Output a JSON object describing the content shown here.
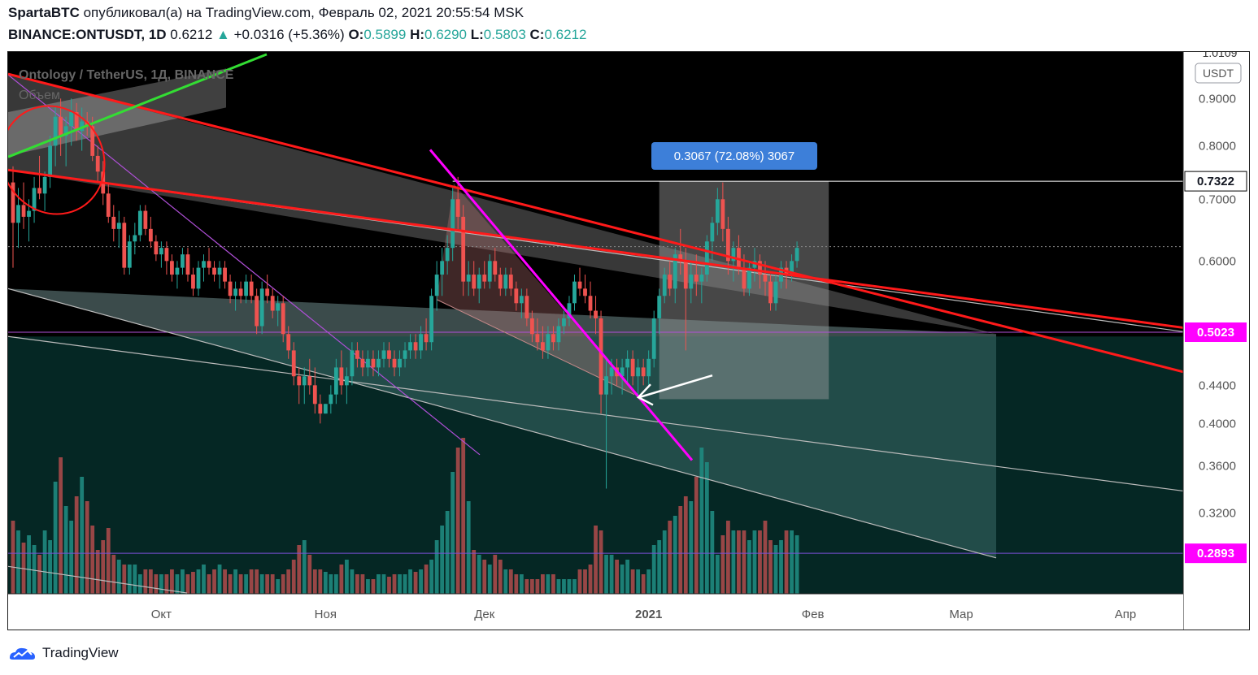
{
  "header": {
    "author": "SpartaBTC",
    "published_text": "опубликовал(а) на TradingView.com, Февраль 02, 2021 20:55:54 MSK",
    "symbol": "BINANCE:ONTUSDT, 1D",
    "last": "0.6212",
    "change": "+0.0316 (+5.36%)",
    "o_label": "O:",
    "o": "0.5899",
    "h_label": "H:",
    "h": "0.6290",
    "l_label": "L:",
    "l": "0.5803",
    "c_label": "C:",
    "c": "0.6212",
    "up_arrow": "▲"
  },
  "overlay": {
    "pair_title": "Ontology / TetherUS, 1Д, BINANCE",
    "volume_label": "Объем",
    "currency": "USDT",
    "top_cut_label": "1.0109",
    "measure_label": "0.3067 (72.08%) 3067"
  },
  "price_marks": [
    {
      "label": "0.7322",
      "value": 0.7322,
      "style": "white"
    },
    {
      "label": "0.5023",
      "value": 0.5023,
      "style": "magenta"
    },
    {
      "label": "0.2893",
      "value": 0.2893,
      "style": "magenta"
    }
  ],
  "footer": {
    "brand": "TradingView"
  },
  "colors": {
    "up": "#26a69a",
    "down": "#ef5350",
    "magenta": "#ff00ff",
    "red_line": "#ff1a1a",
    "green_line": "#33dd33",
    "measure": "#3d7fd9"
  },
  "chart_data": {
    "type": "candlestick",
    "title": "Ontology / TetherUS, 1Д, BINANCE",
    "ylabel": "USDT",
    "y_scale": "log",
    "ylim": [
      0.2615,
      1.0109
    ],
    "yticks": [
      0.9,
      0.8,
      0.7,
      0.6,
      0.44,
      0.4,
      0.36,
      0.32
    ],
    "ytick_labels": [
      "0.9000",
      "0.8000",
      "0.7000",
      "0.6000",
      "0.4400",
      "0.4000",
      "0.3600",
      "0.3200"
    ],
    "x_tick_labels": [
      "Окт",
      "Ноя",
      "Дек",
      "2021",
      "Фев",
      "Мар",
      "Апр"
    ],
    "x_ticks_day": [
      28,
      59,
      89,
      120,
      151,
      179,
      210
    ],
    "xlim_day": [
      0,
      224
    ],
    "date_origin": "2020-09-03",
    "candles_day0": 0,
    "measure": {
      "from_day": 122,
      "to_day": 154,
      "low": 0.425,
      "high": 0.7322
    },
    "candles": [
      [
        0.73,
        0.76,
        0.59,
        0.66
      ],
      [
        0.66,
        0.72,
        0.62,
        0.69
      ],
      [
        0.69,
        0.73,
        0.65,
        0.67
      ],
      [
        0.67,
        0.7,
        0.63,
        0.68
      ],
      [
        0.68,
        0.74,
        0.66,
        0.72
      ],
      [
        0.72,
        0.78,
        0.7,
        0.71
      ],
      [
        0.71,
        0.75,
        0.68,
        0.74
      ],
      [
        0.74,
        0.82,
        0.72,
        0.8
      ],
      [
        0.8,
        0.88,
        0.76,
        0.86
      ],
      [
        0.86,
        0.9,
        0.78,
        0.82
      ],
      [
        0.82,
        0.86,
        0.76,
        0.84
      ],
      [
        0.84,
        0.9,
        0.8,
        0.87
      ],
      [
        0.87,
        0.89,
        0.81,
        0.83
      ],
      [
        0.83,
        0.88,
        0.79,
        0.85
      ],
      [
        0.85,
        0.87,
        0.82,
        0.84
      ],
      [
        0.84,
        0.86,
        0.77,
        0.78
      ],
      [
        0.78,
        0.8,
        0.73,
        0.75
      ],
      [
        0.75,
        0.77,
        0.69,
        0.71
      ],
      [
        0.71,
        0.73,
        0.66,
        0.67
      ],
      [
        0.67,
        0.69,
        0.63,
        0.65
      ],
      [
        0.65,
        0.68,
        0.62,
        0.66
      ],
      [
        0.66,
        0.67,
        0.58,
        0.59
      ],
      [
        0.59,
        0.64,
        0.58,
        0.63
      ],
      [
        0.63,
        0.66,
        0.61,
        0.64
      ],
      [
        0.64,
        0.69,
        0.63,
        0.68
      ],
      [
        0.68,
        0.69,
        0.64,
        0.65
      ],
      [
        0.65,
        0.67,
        0.62,
        0.63
      ],
      [
        0.63,
        0.64,
        0.6,
        0.61
      ],
      [
        0.61,
        0.63,
        0.59,
        0.62
      ],
      [
        0.62,
        0.63,
        0.58,
        0.6
      ],
      [
        0.6,
        0.61,
        0.57,
        0.58
      ],
      [
        0.58,
        0.6,
        0.56,
        0.59
      ],
      [
        0.59,
        0.62,
        0.58,
        0.61
      ],
      [
        0.61,
        0.62,
        0.57,
        0.58
      ],
      [
        0.58,
        0.59,
        0.55,
        0.56
      ],
      [
        0.56,
        0.6,
        0.55,
        0.59
      ],
      [
        0.59,
        0.61,
        0.57,
        0.6
      ],
      [
        0.6,
        0.62,
        0.58,
        0.59
      ],
      [
        0.59,
        0.6,
        0.57,
        0.58
      ],
      [
        0.58,
        0.6,
        0.56,
        0.59
      ],
      [
        0.59,
        0.6,
        0.56,
        0.57
      ],
      [
        0.57,
        0.58,
        0.54,
        0.55
      ],
      [
        0.55,
        0.57,
        0.53,
        0.56
      ],
      [
        0.56,
        0.57,
        0.54,
        0.55
      ],
      [
        0.55,
        0.58,
        0.54,
        0.57
      ],
      [
        0.57,
        0.58,
        0.54,
        0.55
      ],
      [
        0.55,
        0.56,
        0.5,
        0.51
      ],
      [
        0.51,
        0.57,
        0.5,
        0.56
      ],
      [
        0.56,
        0.58,
        0.54,
        0.55
      ],
      [
        0.55,
        0.56,
        0.52,
        0.53
      ],
      [
        0.53,
        0.55,
        0.51,
        0.54
      ],
      [
        0.54,
        0.55,
        0.49,
        0.5
      ],
      [
        0.5,
        0.51,
        0.47,
        0.48
      ],
      [
        0.48,
        0.49,
        0.44,
        0.45
      ],
      [
        0.45,
        0.46,
        0.42,
        0.44
      ],
      [
        0.44,
        0.46,
        0.42,
        0.45
      ],
      [
        0.45,
        0.47,
        0.43,
        0.44
      ],
      [
        0.44,
        0.46,
        0.41,
        0.42
      ],
      [
        0.42,
        0.43,
        0.4,
        0.41
      ],
      [
        0.41,
        0.42,
        0.41,
        0.42
      ],
      [
        0.42,
        0.44,
        0.41,
        0.43
      ],
      [
        0.43,
        0.47,
        0.42,
        0.46
      ],
      [
        0.46,
        0.48,
        0.43,
        0.44
      ],
      [
        0.44,
        0.46,
        0.42,
        0.45
      ],
      [
        0.45,
        0.49,
        0.44,
        0.48
      ],
      [
        0.48,
        0.49,
        0.46,
        0.47
      ],
      [
        0.47,
        0.48,
        0.45,
        0.46
      ],
      [
        0.46,
        0.48,
        0.45,
        0.47
      ],
      [
        0.47,
        0.48,
        0.45,
        0.46
      ],
      [
        0.46,
        0.48,
        0.45,
        0.47
      ],
      [
        0.47,
        0.49,
        0.46,
        0.48
      ],
      [
        0.48,
        0.49,
        0.46,
        0.47
      ],
      [
        0.47,
        0.48,
        0.45,
        0.46
      ],
      [
        0.46,
        0.48,
        0.45,
        0.47
      ],
      [
        0.47,
        0.49,
        0.46,
        0.48
      ],
      [
        0.48,
        0.5,
        0.47,
        0.49
      ],
      [
        0.49,
        0.5,
        0.47,
        0.48
      ],
      [
        0.48,
        0.51,
        0.47,
        0.5
      ],
      [
        0.5,
        0.52,
        0.48,
        0.49
      ],
      [
        0.49,
        0.56,
        0.48,
        0.55
      ],
      [
        0.55,
        0.6,
        0.53,
        0.58
      ],
      [
        0.58,
        0.62,
        0.55,
        0.6
      ],
      [
        0.6,
        0.64,
        0.58,
        0.62
      ],
      [
        0.62,
        0.72,
        0.6,
        0.7
      ],
      [
        0.7,
        0.74,
        0.65,
        0.67
      ],
      [
        0.67,
        0.69,
        0.55,
        0.57
      ],
      [
        0.57,
        0.6,
        0.55,
        0.58
      ],
      [
        0.58,
        0.6,
        0.55,
        0.56
      ],
      [
        0.56,
        0.59,
        0.54,
        0.58
      ],
      [
        0.58,
        0.6,
        0.56,
        0.57
      ],
      [
        0.57,
        0.61,
        0.56,
        0.6
      ],
      [
        0.6,
        0.62,
        0.57,
        0.58
      ],
      [
        0.58,
        0.59,
        0.55,
        0.56
      ],
      [
        0.56,
        0.59,
        0.55,
        0.58
      ],
      [
        0.58,
        0.59,
        0.55,
        0.56
      ],
      [
        0.56,
        0.57,
        0.53,
        0.54
      ],
      [
        0.54,
        0.56,
        0.52,
        0.55
      ],
      [
        0.55,
        0.56,
        0.51,
        0.52
      ],
      [
        0.52,
        0.53,
        0.49,
        0.5
      ],
      [
        0.5,
        0.52,
        0.48,
        0.49
      ],
      [
        0.49,
        0.51,
        0.47,
        0.48
      ],
      [
        0.48,
        0.51,
        0.47,
        0.5
      ],
      [
        0.5,
        0.51,
        0.48,
        0.49
      ],
      [
        0.49,
        0.52,
        0.48,
        0.51
      ],
      [
        0.51,
        0.53,
        0.5,
        0.52
      ],
      [
        0.52,
        0.55,
        0.51,
        0.54
      ],
      [
        0.54,
        0.58,
        0.53,
        0.57
      ],
      [
        0.57,
        0.59,
        0.55,
        0.56
      ],
      [
        0.56,
        0.58,
        0.54,
        0.55
      ],
      [
        0.55,
        0.57,
        0.52,
        0.53
      ],
      [
        0.53,
        0.55,
        0.5,
        0.52
      ],
      [
        0.52,
        0.53,
        0.41,
        0.43
      ],
      [
        0.43,
        0.47,
        0.34,
        0.45
      ],
      [
        0.45,
        0.47,
        0.43,
        0.46
      ],
      [
        0.46,
        0.47,
        0.44,
        0.45
      ],
      [
        0.45,
        0.47,
        0.43,
        0.46
      ],
      [
        0.46,
        0.48,
        0.44,
        0.47
      ],
      [
        0.47,
        0.48,
        0.44,
        0.45
      ],
      [
        0.45,
        0.47,
        0.43,
        0.46
      ],
      [
        0.46,
        0.47,
        0.44,
        0.45
      ],
      [
        0.45,
        0.48,
        0.44,
        0.47
      ],
      [
        0.47,
        0.53,
        0.46,
        0.52
      ],
      [
        0.52,
        0.56,
        0.5,
        0.55
      ],
      [
        0.55,
        0.59,
        0.54,
        0.58
      ],
      [
        0.58,
        0.6,
        0.55,
        0.56
      ],
      [
        0.56,
        0.62,
        0.54,
        0.61
      ],
      [
        0.61,
        0.65,
        0.58,
        0.6
      ],
      [
        0.6,
        0.62,
        0.48,
        0.56
      ],
      [
        0.56,
        0.6,
        0.54,
        0.58
      ],
      [
        0.58,
        0.61,
        0.55,
        0.57
      ],
      [
        0.57,
        0.59,
        0.54,
        0.58
      ],
      [
        0.58,
        0.64,
        0.57,
        0.63
      ],
      [
        0.63,
        0.67,
        0.6,
        0.66
      ],
      [
        0.66,
        0.72,
        0.64,
        0.7
      ],
      [
        0.7,
        0.73,
        0.63,
        0.65
      ],
      [
        0.65,
        0.67,
        0.58,
        0.6
      ],
      [
        0.6,
        0.63,
        0.57,
        0.62
      ],
      [
        0.62,
        0.64,
        0.58,
        0.59
      ],
      [
        0.59,
        0.61,
        0.55,
        0.56
      ],
      [
        0.56,
        0.6,
        0.55,
        0.59
      ],
      [
        0.59,
        0.62,
        0.57,
        0.6
      ],
      [
        0.6,
        0.61,
        0.56,
        0.58
      ],
      [
        0.58,
        0.6,
        0.55,
        0.57
      ],
      [
        0.57,
        0.58,
        0.53,
        0.54
      ],
      [
        0.54,
        0.58,
        0.53,
        0.57
      ],
      [
        0.57,
        0.6,
        0.56,
        0.59
      ],
      [
        0.59,
        0.6,
        0.56,
        0.58
      ],
      [
        0.58,
        0.61,
        0.57,
        0.6
      ],
      [
        0.6,
        0.63,
        0.59,
        0.62
      ]
    ]
  }
}
